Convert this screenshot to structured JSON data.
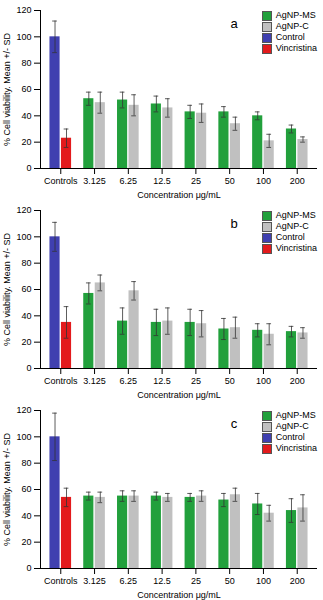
{
  "chart_data": [
    {
      "type": "bar",
      "title": "a",
      "x_label": "Concentration μg/mL",
      "y_label": "% Cell viability. Mean +/- SD",
      "categories": [
        "Controls",
        "3.125",
        "6.25",
        "12.5",
        "25",
        "50",
        "100",
        "200"
      ],
      "ylim": [
        0,
        120
      ],
      "yticks": [
        0,
        20,
        40,
        60,
        80,
        100,
        120
      ],
      "grid": false,
      "legend": "top-right",
      "series": [
        {
          "name": "AgNP-MS",
          "color": "#22a03c",
          "values": [
            null,
            53,
            52,
            49,
            43,
            43,
            40,
            30
          ],
          "errors": [
            null,
            5,
            6,
            6,
            5,
            4,
            3,
            3
          ]
        },
        {
          "name": "AgNP-C",
          "color": "#c0c0c0",
          "values": [
            null,
            50,
            48,
            46,
            42,
            34,
            21,
            22
          ],
          "errors": [
            null,
            8,
            8,
            7,
            7,
            5,
            5,
            2
          ]
        },
        {
          "name": "Control",
          "color": "#4040b0",
          "values": [
            100,
            null,
            null,
            null,
            null,
            null,
            null,
            null
          ],
          "errors": [
            12,
            null,
            null,
            null,
            null,
            null,
            null,
            null
          ]
        },
        {
          "name": "Vincristina",
          "color": "#e31a1c",
          "values": [
            23,
            null,
            null,
            null,
            null,
            null,
            null,
            null
          ],
          "errors": [
            7,
            null,
            null,
            null,
            null,
            null,
            null,
            null
          ]
        }
      ]
    },
    {
      "type": "bar",
      "title": "b",
      "x_label": "Concentration μg/mL",
      "y_label": "% Cell viability. Mean +/- SD",
      "categories": [
        "Controls",
        "3.125",
        "6.25",
        "12.5",
        "25",
        "50",
        "100",
        "200"
      ],
      "ylim": [
        0,
        120
      ],
      "yticks": [
        0,
        20,
        40,
        60,
        80,
        100,
        120
      ],
      "grid": false,
      "legend": "top-right",
      "series": [
        {
          "name": "AgNP-MS",
          "color": "#22a03c",
          "values": [
            null,
            57,
            36,
            35,
            35,
            30,
            29,
            28
          ],
          "errors": [
            null,
            8,
            10,
            10,
            10,
            8,
            5,
            4
          ]
        },
        {
          "name": "AgNP-C",
          "color": "#c0c0c0",
          "values": [
            null,
            65,
            59,
            36,
            34,
            31,
            26,
            27
          ],
          "errors": [
            null,
            6,
            7,
            10,
            10,
            8,
            8,
            4
          ]
        },
        {
          "name": "Control",
          "color": "#4040b0",
          "values": [
            100,
            null,
            null,
            null,
            null,
            null,
            null,
            null
          ],
          "errors": [
            11,
            null,
            null,
            null,
            null,
            null,
            null,
            null
          ]
        },
        {
          "name": "Vincristina",
          "color": "#e31a1c",
          "values": [
            35,
            null,
            null,
            null,
            null,
            null,
            null,
            null
          ],
          "errors": [
            12,
            null,
            null,
            null,
            null,
            null,
            null,
            null
          ]
        }
      ]
    },
    {
      "type": "bar",
      "title": "c",
      "x_label": "Concentration μg/mL",
      "y_label": "% Cell viability. Mean +/- SD",
      "categories": [
        "Controls",
        "3.125",
        "6.25",
        "12.5",
        "25",
        "50",
        "100",
        "200"
      ],
      "ylim": [
        0,
        120
      ],
      "yticks": [
        0,
        20,
        40,
        60,
        80,
        100,
        120
      ],
      "grid": false,
      "legend": "top-right",
      "series": [
        {
          "name": "AgNP-MS",
          "color": "#22a03c",
          "values": [
            null,
            55,
            55,
            55,
            54,
            52,
            49,
            44
          ],
          "errors": [
            null,
            3,
            4,
            3,
            3,
            5,
            8,
            9
          ]
        },
        {
          "name": "AgNP-C",
          "color": "#c0c0c0",
          "values": [
            null,
            54,
            55,
            54,
            55,
            56,
            42,
            46
          ],
          "errors": [
            null,
            4,
            4,
            3,
            4,
            5,
            6,
            10
          ]
        },
        {
          "name": "Control",
          "color": "#4040b0",
          "values": [
            100,
            null,
            null,
            null,
            null,
            null,
            null,
            null
          ],
          "errors": [
            18,
            null,
            null,
            null,
            null,
            null,
            null,
            null
          ]
        },
        {
          "name": "Vincristina",
          "color": "#e31a1c",
          "values": [
            54,
            null,
            null,
            null,
            null,
            null,
            null,
            null
          ],
          "errors": [
            7,
            null,
            null,
            null,
            null,
            null,
            null,
            null
          ]
        }
      ]
    }
  ]
}
